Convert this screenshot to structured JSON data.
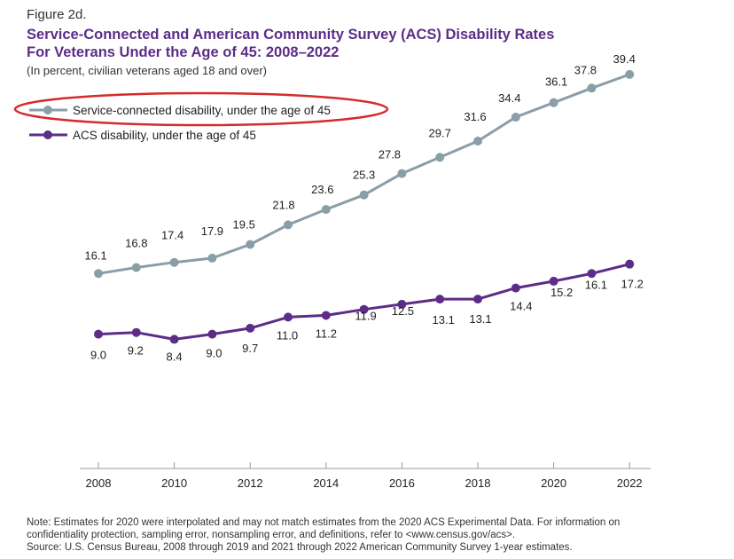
{
  "figure_label": "Figure 2d.",
  "title_line1": "Service-Connected and American Community Survey (ACS) Disability Rates",
  "title_line2": "For Veterans Under the Age of 45: 2008–2022",
  "subtitle": "(In percent, civilian veterans aged 18 and over)",
  "note_line1": "Note: Estimates for 2020 were interpolated and may not match estimates from the 2020 ACS Experimental Data. For information on",
  "note_line2": "confidentiality protection, sampling error, nonsampling error, and definitions, refer to <www.census.gov/acs>.",
  "note_line3": "Source: U.S. Census Bureau, 2008 through 2019 and 2021 through 2022 American Community Survey 1-year estimates.",
  "colors": {
    "service": "#8a9ea8",
    "acs": "#5c2d86",
    "highlight_oval": "#d42b2b",
    "axis": "#999999"
  },
  "chart_data": {
    "type": "line",
    "x": [
      2008,
      2009,
      2010,
      2011,
      2012,
      2013,
      2014,
      2015,
      2016,
      2017,
      2018,
      2019,
      2020,
      2021,
      2022
    ],
    "xticks": [
      2008,
      2010,
      2012,
      2014,
      2016,
      2018,
      2020,
      2022
    ],
    "ylim": [
      0,
      42
    ],
    "grid": false,
    "legend_position": "top-left",
    "series": [
      {
        "name": "Service-connected disability, under the age of 45",
        "values": [
          16.1,
          16.8,
          17.4,
          17.9,
          19.5,
          21.8,
          23.6,
          25.3,
          27.8,
          29.7,
          31.6,
          34.4,
          36.1,
          37.8,
          39.4
        ],
        "labels": [
          "16.1",
          "16.8",
          "17.4",
          "17.9",
          "19.5",
          "21.8",
          "23.6",
          "25.3",
          "27.8",
          "29.7",
          "31.6",
          "34.4",
          "36.1",
          "37.8",
          "39.4"
        ]
      },
      {
        "name": "ACS disability, under the age of 45",
        "values": [
          9.0,
          9.2,
          8.4,
          9.0,
          9.7,
          11.0,
          11.2,
          11.9,
          12.5,
          13.1,
          13.1,
          14.4,
          15.2,
          16.1,
          17.2
        ],
        "labels": [
          "9.0",
          "9.2",
          "8.4",
          "9.0",
          "9.7",
          "11.0",
          "11.2",
          "11.9",
          "12.5",
          "13.1",
          "13.1",
          "14.4",
          "15.2",
          "16.1",
          "17.2"
        ]
      }
    ]
  }
}
